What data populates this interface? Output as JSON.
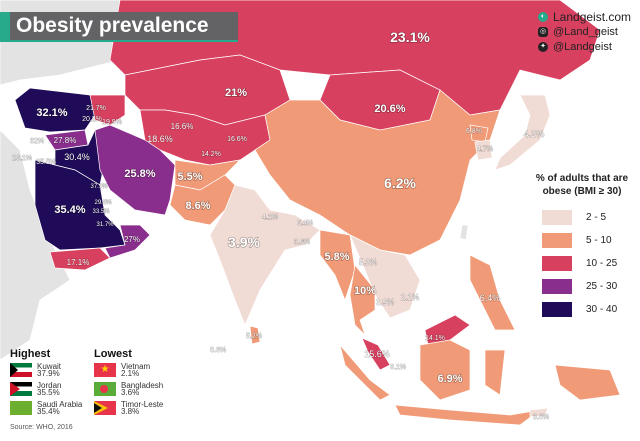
{
  "title": "Obesity prevalence",
  "social": {
    "website": "Landgeist.com",
    "instagram": "@Land_geist",
    "twitter": "@Landgeist"
  },
  "legend": {
    "title": "% of adults that are obese (BMI ≥ 30)",
    "items": [
      {
        "range": "2 - 5",
        "color": "#f1dbd5"
      },
      {
        "range": "5 - 10",
        "color": "#f19a77"
      },
      {
        "range": "10 - 25",
        "color": "#d8405f"
      },
      {
        "range": "25 - 30",
        "color": "#8a2e8d"
      },
      {
        "range": "30 - 40",
        "color": "#1f0b57"
      }
    ]
  },
  "highest": {
    "heading": "Highest",
    "items": [
      {
        "country": "Kuwait",
        "value": "37.9%"
      },
      {
        "country": "Jordan",
        "value": "35.5%"
      },
      {
        "country": "Saudi Arabia",
        "value": "35.4%"
      }
    ]
  },
  "lowest": {
    "heading": "Lowest",
    "items": [
      {
        "country": "Vietnam",
        "value": "2.1%"
      },
      {
        "country": "Bangladesh",
        "value": "3.6%"
      },
      {
        "country": "Timor-Leste",
        "value": "3.8%"
      }
    ]
  },
  "source": "Source: WHO, 2016",
  "map_labels": {
    "russia": "23.1%",
    "kazakhstan": "21%",
    "mongolia": "20.6%",
    "turkey": "32.1%",
    "georgia": "21.7%",
    "armenia": "20.2%",
    "azerbaijan": "19.9%",
    "syria": "27.8%",
    "lebanon": "32%",
    "iraq": "30.4%",
    "israel": "26.1%",
    "jordan": "35.5%",
    "iran": "25.8%",
    "turkmenistan": "18.6%",
    "uzbekistan": "16.6%",
    "kyrgyzstan": "16.6%",
    "tajikistan": "14.2%",
    "kuwait": "37.9%",
    "bahrain": "29.8%",
    "qatar": "33.5%",
    "uae": "31.7%",
    "saudi": "35.4%",
    "oman": "27%",
    "yemen": "17.1%",
    "afghanistan": "5.5%",
    "pakistan": "8.6%",
    "india": "3.9%",
    "nepal": "4.1%",
    "bhutan": "6.4%",
    "bangladesh": "3.6%",
    "china": "6.2%",
    "myanmar": "5.8%",
    "laos": "5.3%",
    "thailand": "10%",
    "cambodia": "3.9%",
    "vietnam": "2.1%",
    "north_korea": "6.8%",
    "south_korea": "4.7%",
    "japan": "4.3%",
    "philippines": "6.4%",
    "sri_lanka": "5.2%",
    "maldives": "8.6%",
    "malaysia": "15.6%",
    "singapore": "6.1%",
    "brunei": "14.1%",
    "indonesia": "6.9%",
    "timor_leste": "3.8%"
  }
}
